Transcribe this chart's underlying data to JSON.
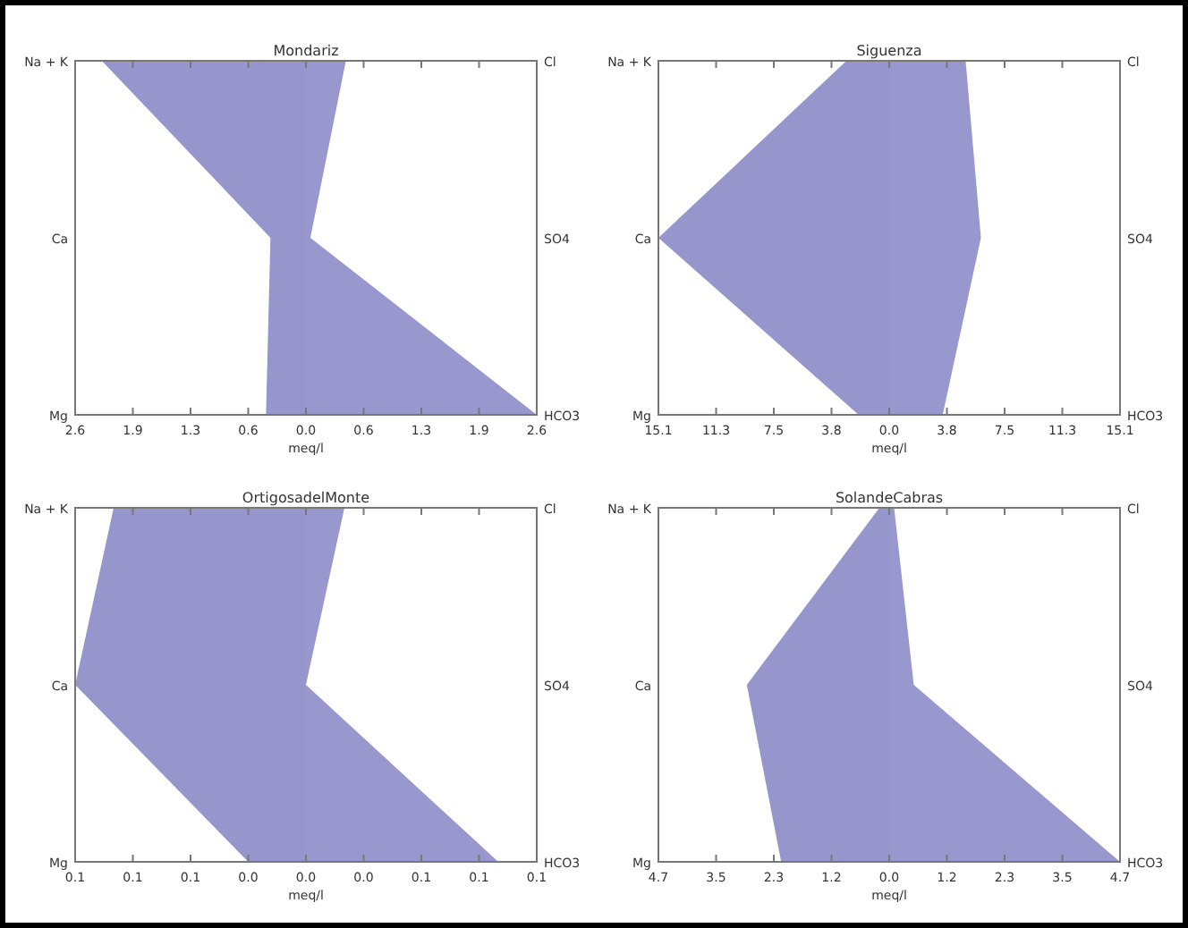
{
  "chart_data": [
    {
      "type": "area",
      "orientation": "horizontal",
      "title": "Mondariz",
      "xlabel": "meq/l",
      "categories": [
        "Na + K",
        "Ca",
        "Mg"
      ],
      "y2_categories": [
        "Cl",
        "SO4",
        "HCO3"
      ],
      "xlim": [
        -2.6,
        2.6
      ],
      "xticks": [
        {
          "value": -2.6,
          "label": "2.6"
        },
        {
          "value": -1.95,
          "label": "1.9"
        },
        {
          "value": -1.3,
          "label": "1.3"
        },
        {
          "value": -0.65,
          "label": "0.6"
        },
        {
          "value": 0,
          "label": "0.0"
        },
        {
          "value": 0.65,
          "label": "0.6"
        },
        {
          "value": 1.3,
          "label": "1.3"
        },
        {
          "value": 1.95,
          "label": "1.9"
        },
        {
          "value": 2.6,
          "label": "2.6"
        }
      ],
      "series": [
        {
          "color": "#9696cc",
          "values": [
            -2.3,
            -0.4,
            -0.45
          ]
        },
        {
          "color": "#9898ce",
          "values": [
            0.45,
            0.05,
            2.6
          ]
        }
      ]
    },
    {
      "type": "area",
      "orientation": "horizontal",
      "title": "Siguenza",
      "xlabel": "meq/l",
      "categories": [
        "Na + K",
        "Ca",
        "Mg"
      ],
      "y2_categories": [
        "Cl",
        "SO4",
        "HCO3"
      ],
      "xlim": [
        -15.1,
        15.1
      ],
      "xticks": [
        {
          "value": -15.1,
          "label": "15.1"
        },
        {
          "value": -11.325,
          "label": "11.3"
        },
        {
          "value": -7.55,
          "label": "7.5"
        },
        {
          "value": -3.775,
          "label": "3.8"
        },
        {
          "value": 0,
          "label": "0.0"
        },
        {
          "value": 3.775,
          "label": "3.8"
        },
        {
          "value": 7.55,
          "label": "7.5"
        },
        {
          "value": 11.325,
          "label": "11.3"
        },
        {
          "value": 15.1,
          "label": "15.1"
        }
      ],
      "series": [
        {
          "color": "#9696cc",
          "values": [
            -2.8,
            -15.1,
            -2
          ]
        },
        {
          "color": "#9898ce",
          "values": [
            5,
            6,
            3.5
          ]
        }
      ]
    },
    {
      "type": "area",
      "orientation": "horizontal",
      "title": "OrtigosadelMonte",
      "xlabel": "meq/l",
      "categories": [
        "Na + K",
        "Ca",
        "Mg"
      ],
      "y2_categories": [
        "Cl",
        "SO4",
        "HCO3"
      ],
      "xlim": [
        -0.12,
        0.12
      ],
      "xticks": [
        {
          "value": -0.12,
          "label": "0.1"
        },
        {
          "value": -0.09,
          "label": "0.1"
        },
        {
          "value": -0.06,
          "label": "0.1"
        },
        {
          "value": -0.03,
          "label": "0.0"
        },
        {
          "value": 0,
          "label": "0.0"
        },
        {
          "value": 0.03,
          "label": "0.0"
        },
        {
          "value": 0.06,
          "label": "0.1"
        },
        {
          "value": 0.09,
          "label": "0.1"
        },
        {
          "value": 0.12,
          "label": "0.1"
        }
      ],
      "series": [
        {
          "color": "#9696cc",
          "values": [
            -0.1,
            -0.12,
            -0.03
          ]
        },
        {
          "color": "#9898ce",
          "values": [
            0.02,
            0,
            0.1
          ]
        }
      ]
    },
    {
      "type": "area",
      "orientation": "horizontal",
      "title": "SolandeCabras",
      "xlabel": "meq/l",
      "categories": [
        "Na + K",
        "Ca",
        "Mg"
      ],
      "y2_categories": [
        "Cl",
        "SO4",
        "HCO3"
      ],
      "xlim": [
        -4.7,
        4.7
      ],
      "xticks": [
        {
          "value": -4.7,
          "label": "4.7"
        },
        {
          "value": -3.525,
          "label": "3.5"
        },
        {
          "value": -2.35,
          "label": "2.3"
        },
        {
          "value": -1.175,
          "label": "1.2"
        },
        {
          "value": 0,
          "label": "0.0"
        },
        {
          "value": 1.175,
          "label": "1.2"
        },
        {
          "value": 2.35,
          "label": "2.3"
        },
        {
          "value": 3.525,
          "label": "3.5"
        },
        {
          "value": 4.7,
          "label": "4.7"
        }
      ],
      "series": [
        {
          "color": "#9696cc",
          "values": [
            -0.2,
            -2.9,
            -2.2
          ]
        },
        {
          "color": "#9898ce",
          "values": [
            0.1,
            0.5,
            4.7
          ]
        }
      ]
    }
  ]
}
